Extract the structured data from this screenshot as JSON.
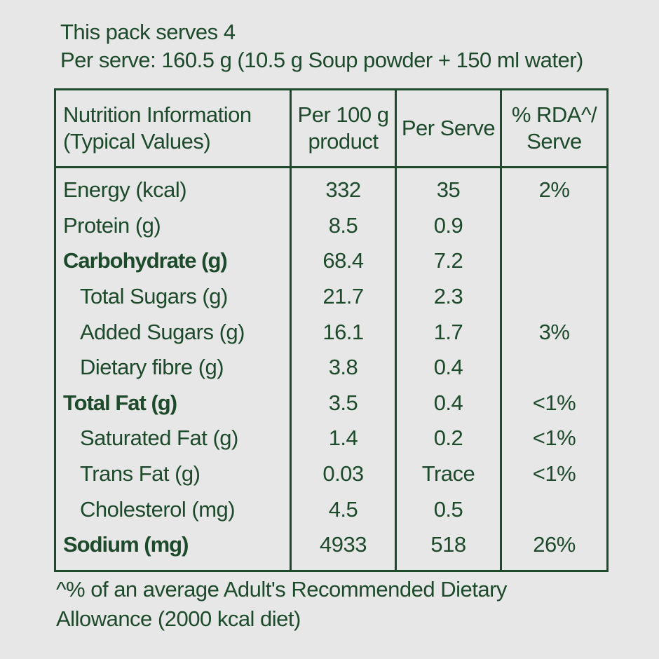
{
  "header": {
    "serves": "This pack serves 4",
    "per_serve": "Per serve: 160.5 g (10.5 g Soup powder + 150 ml water)"
  },
  "table": {
    "headers": [
      [
        "Nutrition Information",
        "(Typical Values)"
      ],
      [
        "Per 100 g",
        "product"
      ],
      [
        "Per Serve"
      ],
      [
        "% RDA^/",
        "Serve"
      ]
    ],
    "rows": [
      {
        "label": "Energy (kcal)",
        "per100": "332",
        "perServe": "35",
        "rda": "2%",
        "bold": false,
        "indent": false
      },
      {
        "label": "Protein (g)",
        "per100": "8.5",
        "perServe": "0.9",
        "rda": "",
        "bold": false,
        "indent": false
      },
      {
        "label": "Carbohydrate (g)",
        "per100": "68.4",
        "perServe": "7.2",
        "rda": "",
        "bold": true,
        "indent": false
      },
      {
        "label": "Total Sugars (g)",
        "per100": "21.7",
        "perServe": "2.3",
        "rda": "",
        "bold": false,
        "indent": true
      },
      {
        "label": "Added Sugars (g)",
        "per100": "16.1",
        "perServe": "1.7",
        "rda": "3%",
        "bold": false,
        "indent": true
      },
      {
        "label": "Dietary fibre (g)",
        "per100": "3.8",
        "perServe": "0.4",
        "rda": "",
        "bold": false,
        "indent": true
      },
      {
        "label": "Total Fat (g)",
        "per100": "3.5",
        "perServe": "0.4",
        "rda": "<1%",
        "bold": true,
        "indent": false
      },
      {
        "label": "Saturated Fat (g)",
        "per100": "1.4",
        "perServe": "0.2",
        "rda": "<1%",
        "bold": false,
        "indent": true
      },
      {
        "label": "Trans Fat (g)",
        "per100": "0.03",
        "perServe": "Trace",
        "rda": "<1%",
        "bold": false,
        "indent": true
      },
      {
        "label": "Cholesterol (mg)",
        "per100": "4.5",
        "perServe": "0.5",
        "rda": "",
        "bold": false,
        "indent": true
      },
      {
        "label": "Sodium (mg)",
        "per100": "4933",
        "perServe": "518",
        "rda": "26%",
        "bold": true,
        "indent": false
      }
    ]
  },
  "footnote": {
    "line1": "^% of an average Adult's Recommended Dietary",
    "line2": "Allowance (2000 kcal diet)"
  },
  "colors": {
    "text": "#1e4a2c",
    "background": "#e6e7e6"
  }
}
